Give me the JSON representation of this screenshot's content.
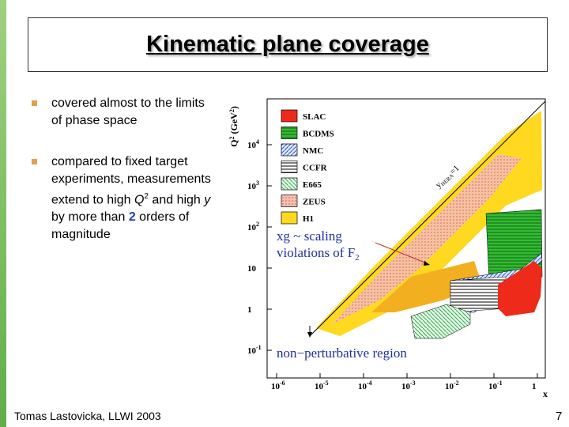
{
  "title": "Kinematic plane coverage",
  "bullets": [
    {
      "text": "covered almost to the limits of phase space"
    },
    {
      "parts": [
        "compared to fixed target experiments, measurements extend to high ",
        "Q",
        "2",
        " and high ",
        "y",
        " by more than ",
        "2",
        " orders of magnitude"
      ]
    }
  ],
  "figure": {
    "y_axis_label": [
      "Q",
      "2",
      " (GeV",
      "2",
      ")"
    ],
    "y_ticks": [
      {
        "base": "10",
        "exp": "4"
      },
      {
        "base": "10",
        "exp": "3"
      },
      {
        "base": "10",
        "exp": "2"
      },
      {
        "base": "10"
      },
      {
        "base": "1"
      },
      {
        "base": "10",
        "exp": "-1"
      }
    ],
    "x_ticks": [
      {
        "base": "10",
        "exp": "-6"
      },
      {
        "base": "10",
        "exp": "-5"
      },
      {
        "base": "10",
        "exp": "-4"
      },
      {
        "base": "10",
        "exp": "-3"
      },
      {
        "base": "10",
        "exp": "-2"
      },
      {
        "base": "10",
        "exp": "-1"
      },
      {
        "base": "1"
      }
    ],
    "x_axis_label": "x",
    "legend": [
      "SLAC",
      "BCDMS",
      "NMC",
      "CCFR",
      "E665",
      "ZEUS",
      "H1"
    ],
    "diagonal_label": [
      "y",
      "HERA",
      "=1"
    ],
    "annotation": [
      "xg ~ scaling",
      "violations of F",
      "2"
    ],
    "region_label": "non−perturbative region"
  },
  "footer": "Tomas Lastovicka, LLWI 2003",
  "page_number": "7"
}
